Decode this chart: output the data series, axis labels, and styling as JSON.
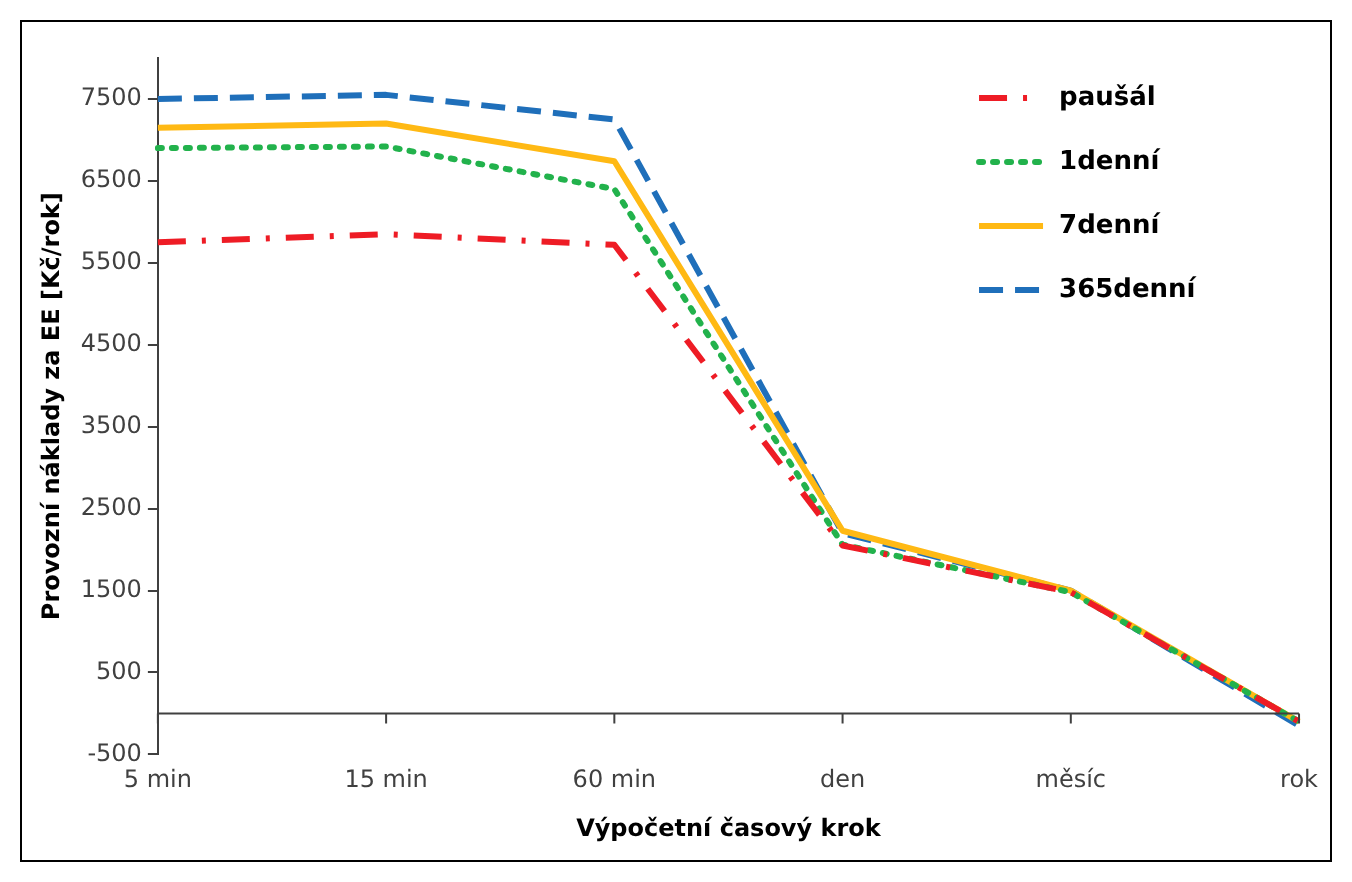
{
  "chart_data": {
    "type": "line",
    "xlabel": "Výpočetní časový krok",
    "ylabel": "Provozní náklady za EE [Kč/rok]",
    "categories": [
      "5 min",
      "15 min",
      "60 min",
      "den",
      "měsíc",
      "rok"
    ],
    "series": [
      {
        "name": "paušál",
        "color": "#ee1c25",
        "line_style": "dashdot",
        "values": [
          5750,
          5850,
          5720,
          2050,
          1480,
          -100
        ]
      },
      {
        "name": "1denní",
        "color": "#22b24c",
        "line_style": "dotted",
        "values": [
          6900,
          6920,
          6400,
          2060,
          1480,
          -100
        ]
      },
      {
        "name": "7denní",
        "color": "#ffb914",
        "line_style": "solid",
        "values": [
          7150,
          7200,
          6740,
          2230,
          1500,
          -100
        ]
      },
      {
        "name": "365denní",
        "color": "#1f6fba",
        "line_style": "dashed",
        "values": [
          7500,
          7550,
          7250,
          2200,
          1500,
          -150
        ]
      }
    ],
    "ylim": [
      -500,
      8000
    ],
    "yticks": [
      -500,
      500,
      1500,
      2500,
      3500,
      4500,
      5500,
      6500,
      7500
    ],
    "legend": "top right",
    "marker": "none"
  }
}
